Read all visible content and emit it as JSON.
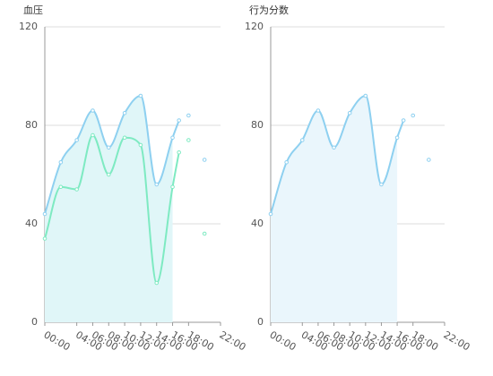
{
  "chart_data": [
    {
      "type": "area",
      "title": "血压",
      "xlabel": "",
      "ylabel": "",
      "x_ticks": [
        "00:00",
        "04:00",
        "06:00",
        "08:00",
        "10:00",
        "12:00",
        "14:00",
        "16:00",
        "18:00",
        "22:00"
      ],
      "x_tick_values": [
        0,
        4,
        6,
        8,
        10,
        12,
        14,
        16,
        18,
        22
      ],
      "xlim": [
        0,
        22
      ],
      "y_ticks": [
        "0",
        "40",
        "80",
        "120"
      ],
      "y_tick_values": [
        0,
        40,
        80,
        120
      ],
      "ylim": [
        0,
        120
      ],
      "grid": true,
      "series": [
        {
          "x": [
            0,
            2,
            4,
            6,
            8,
            10,
            12,
            14,
            16,
            16.8,
            18,
            20
          ],
          "values": [
            44,
            65,
            74,
            86,
            71,
            85,
            92,
            56,
            75,
            82,
            84,
            66
          ],
          "color": "#8ed0f0",
          "line_through_index": 9,
          "fill_through_index": 8
        },
        {
          "x": [
            0,
            2,
            4,
            6,
            8,
            10,
            12,
            14,
            16,
            16.8,
            18,
            20
          ],
          "values": [
            34,
            55,
            54,
            76,
            60,
            75,
            72,
            16,
            55,
            69,
            74,
            36
          ],
          "color": "#7eeac2",
          "line_through_index": 9,
          "fill_through_index": 8
        }
      ]
    },
    {
      "type": "area",
      "title": "行为分数",
      "xlabel": "",
      "ylabel": "",
      "x_ticks": [
        "00:00",
        "04:00",
        "06:00",
        "08:00",
        "10:00",
        "12:00",
        "14:00",
        "16:00",
        "18:00",
        "22:00"
      ],
      "x_tick_values": [
        0,
        4,
        6,
        8,
        10,
        12,
        14,
        16,
        18,
        22
      ],
      "xlim": [
        0,
        22
      ],
      "y_ticks": [
        "0",
        "40",
        "80",
        "120"
      ],
      "y_tick_values": [
        0,
        40,
        80,
        120
      ],
      "ylim": [
        0,
        120
      ],
      "grid": true,
      "series": [
        {
          "x": [
            0,
            2,
            4,
            6,
            8,
            10,
            12,
            14,
            16,
            16.8,
            18,
            20
          ],
          "values": [
            44,
            65,
            74,
            86,
            71,
            85,
            92,
            56,
            75,
            82,
            84,
            66
          ],
          "color": "#8ed0f0",
          "line_through_index": 9,
          "fill_through_index": 8
        }
      ]
    }
  ]
}
